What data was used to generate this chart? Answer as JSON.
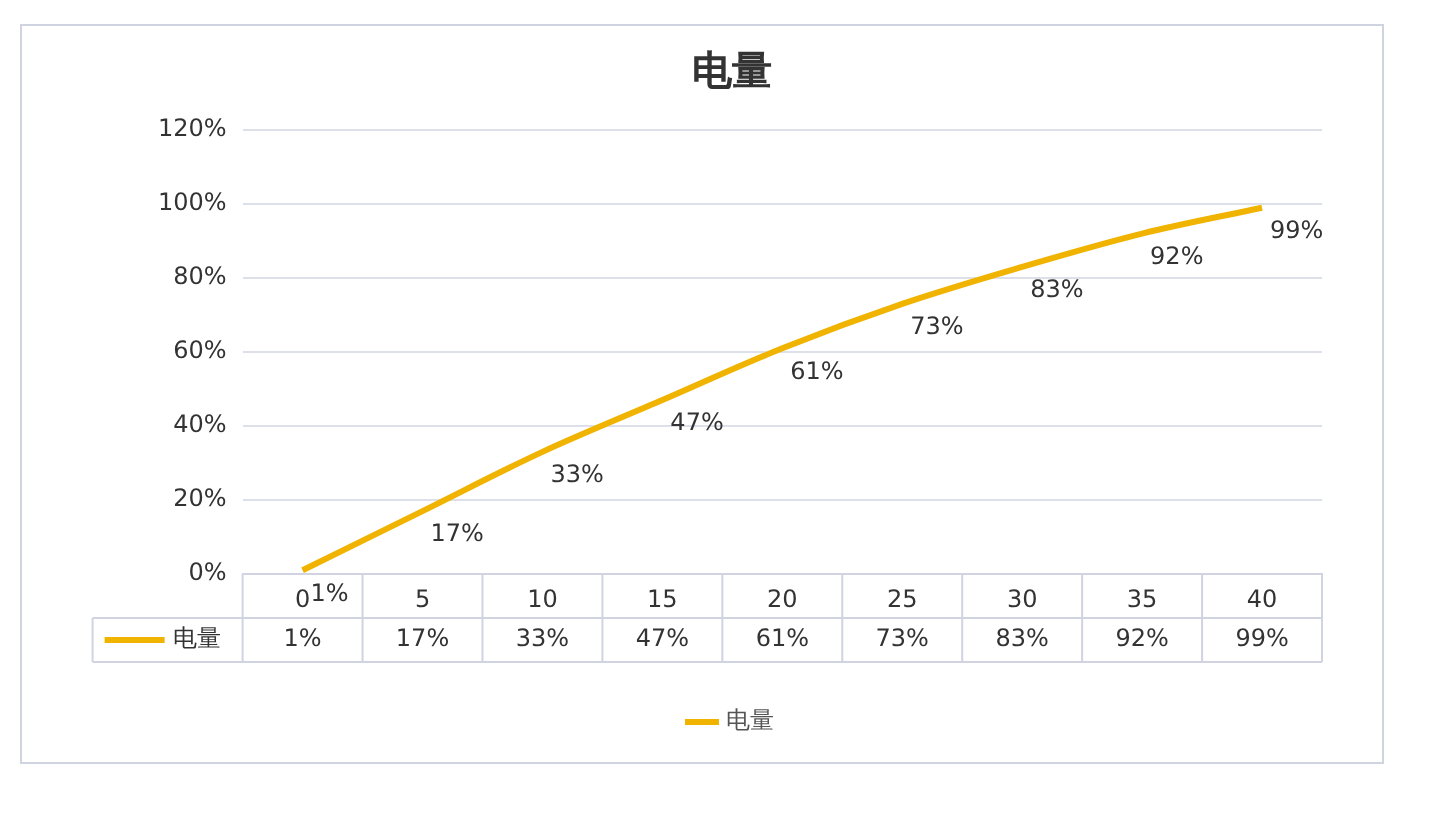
{
  "chart_data": {
    "type": "line",
    "title": "电量",
    "categories": [
      "0",
      "5",
      "10",
      "15",
      "20",
      "25",
      "30",
      "35",
      "40"
    ],
    "series": [
      {
        "name": "电量",
        "color": "#f0b400",
        "values": [
          1,
          17,
          33,
          47,
          61,
          73,
          83,
          92,
          99
        ],
        "value_labels": [
          "1%",
          "17%",
          "33%",
          "47%",
          "61%",
          "73%",
          "83%",
          "92%",
          "99%"
        ]
      }
    ],
    "ylim": [
      0,
      120
    ],
    "yticks": [
      {
        "value": 0,
        "label": "0%"
      },
      {
        "value": 20,
        "label": "20%"
      },
      {
        "value": 40,
        "label": "40%"
      },
      {
        "value": 60,
        "label": "60%"
      },
      {
        "value": 80,
        "label": "80%"
      },
      {
        "value": 100,
        "label": "100%"
      },
      {
        "value": 120,
        "label": "120%"
      }
    ],
    "grid": "y",
    "legend": "bottom",
    "marker": "none",
    "line_style": "solid"
  }
}
